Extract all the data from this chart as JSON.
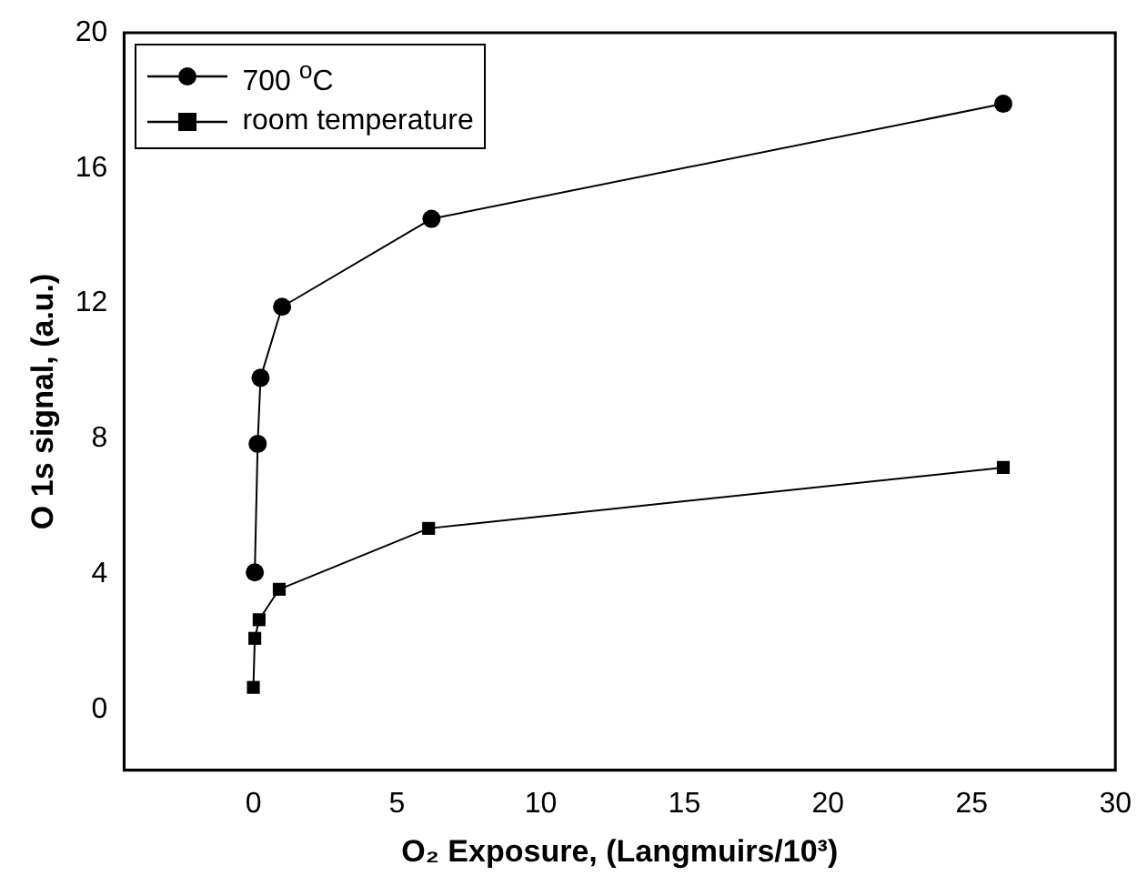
{
  "chart_data": {
    "type": "line",
    "xlabel": "O₂ Exposure, (Langmuirs/10³)",
    "ylabel": "O 1s signal, (a.u.)",
    "xlim": [
      -4.5,
      30
    ],
    "xticks": [
      0,
      5,
      10,
      15,
      20,
      25,
      30
    ],
    "ylim": [
      -1.8,
      20
    ],
    "yticks": [
      0,
      4,
      8,
      12,
      16,
      20
    ],
    "grid": false,
    "legend": "top left",
    "line_style": "solid",
    "series": [
      {
        "name": "700 $^{o}$C",
        "color": "#000000",
        "marker": "circle",
        "x": [
          0.05,
          0.15,
          0.25,
          1.0,
          6.2,
          26.1
        ],
        "values": [
          4.05,
          7.85,
          9.8,
          11.9,
          14.5,
          17.9
        ]
      },
      {
        "name": "room temperature",
        "color": "#000000",
        "marker": "square",
        "x": [
          0,
          0.05,
          0.2,
          0.9,
          6.1,
          26.1
        ],
        "values": [
          0.65,
          2.1,
          2.65,
          3.55,
          5.35,
          7.15
        ]
      }
    ]
  }
}
